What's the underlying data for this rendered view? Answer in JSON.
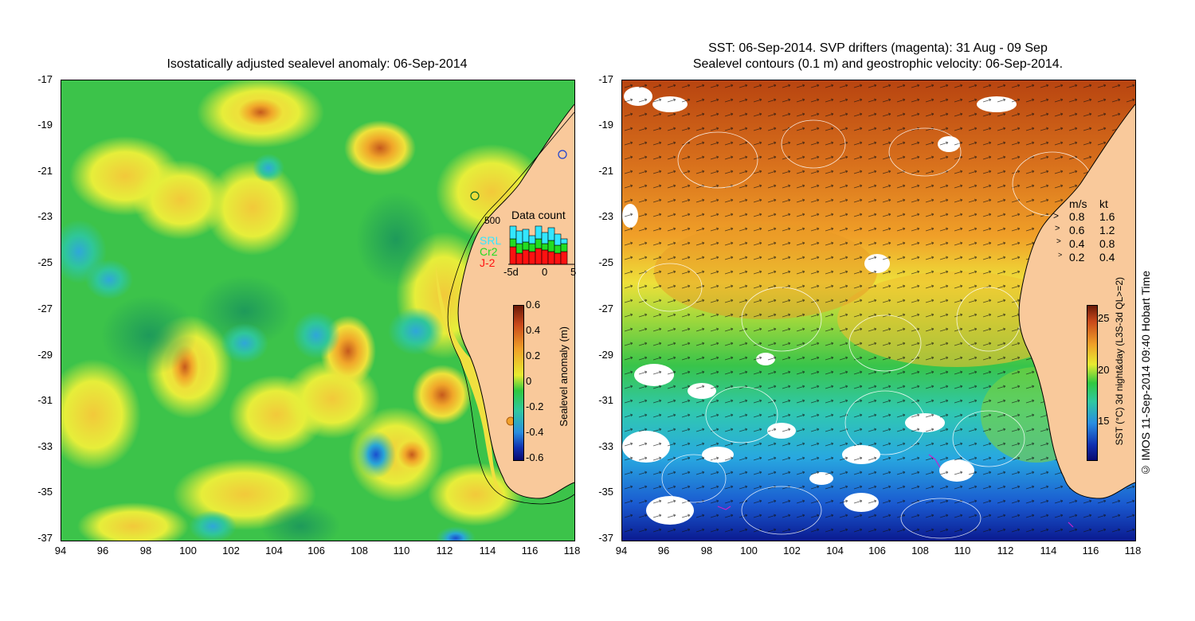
{
  "left_panel": {
    "title": "Isostatically adjusted sealevel anomaly: 06-Sep-2014",
    "y_ticks": [
      "-17",
      "-19",
      "-21",
      "-23",
      "-25",
      "-27",
      "-29",
      "-31",
      "-33",
      "-35",
      "-37"
    ],
    "x_ticks": [
      "94",
      "96",
      "98",
      "100",
      "102",
      "104",
      "106",
      "108",
      "110",
      "112",
      "114",
      "116",
      "118"
    ],
    "data_count": {
      "title": "Data count",
      "max_label": "500",
      "x_labels": [
        "-5d",
        "0",
        "5"
      ],
      "legend": [
        {
          "label": "SRL",
          "color": "#33e6ff"
        },
        {
          "label": "Cr2",
          "color": "#22dd22"
        },
        {
          "label": "J-2",
          "color": "#ff1111"
        }
      ]
    },
    "colorbar": {
      "ticks": [
        "0.6",
        "0.4",
        "0.2",
        "0",
        "-0.2",
        "-0.4",
        "-0.6"
      ],
      "label": "Sealevel anomaly (m)",
      "range": [
        -0.6,
        0.6
      ]
    }
  },
  "right_panel": {
    "title_line1": "SST: 06-Sep-2014. SVP drifters (magenta): 31 Aug - 09 Sep",
    "title_line2": "Sealevel contours (0.1 m) and geostrophic velocity: 06-Sep-2014.",
    "y_ticks": [
      "-17",
      "-19",
      "-21",
      "-23",
      "-25",
      "-27",
      "-29",
      "-31",
      "-33",
      "-35",
      "-37"
    ],
    "x_ticks": [
      "94",
      "96",
      "98",
      "100",
      "102",
      "104",
      "106",
      "108",
      "110",
      "112",
      "114",
      "116",
      "118"
    ],
    "speed_legend": {
      "header_ms": "m/s",
      "header_kt": "kt",
      "rows": [
        {
          "ms": "0.8",
          "kt": "1.6"
        },
        {
          "ms": "0.6",
          "kt": "1.2"
        },
        {
          "ms": "0.4",
          "kt": "0.8"
        },
        {
          "ms": "0.2",
          "kt": "0.4"
        }
      ]
    },
    "colorbar": {
      "ticks": [
        "25",
        "20",
        "15"
      ],
      "label": "SST (°C) 3d night&day (L3S-3d QL>=2)",
      "range": [
        11.5,
        26.5
      ]
    }
  },
  "credit": "© IMOS 11-Sep-2014 09:40 Hobart Time"
}
